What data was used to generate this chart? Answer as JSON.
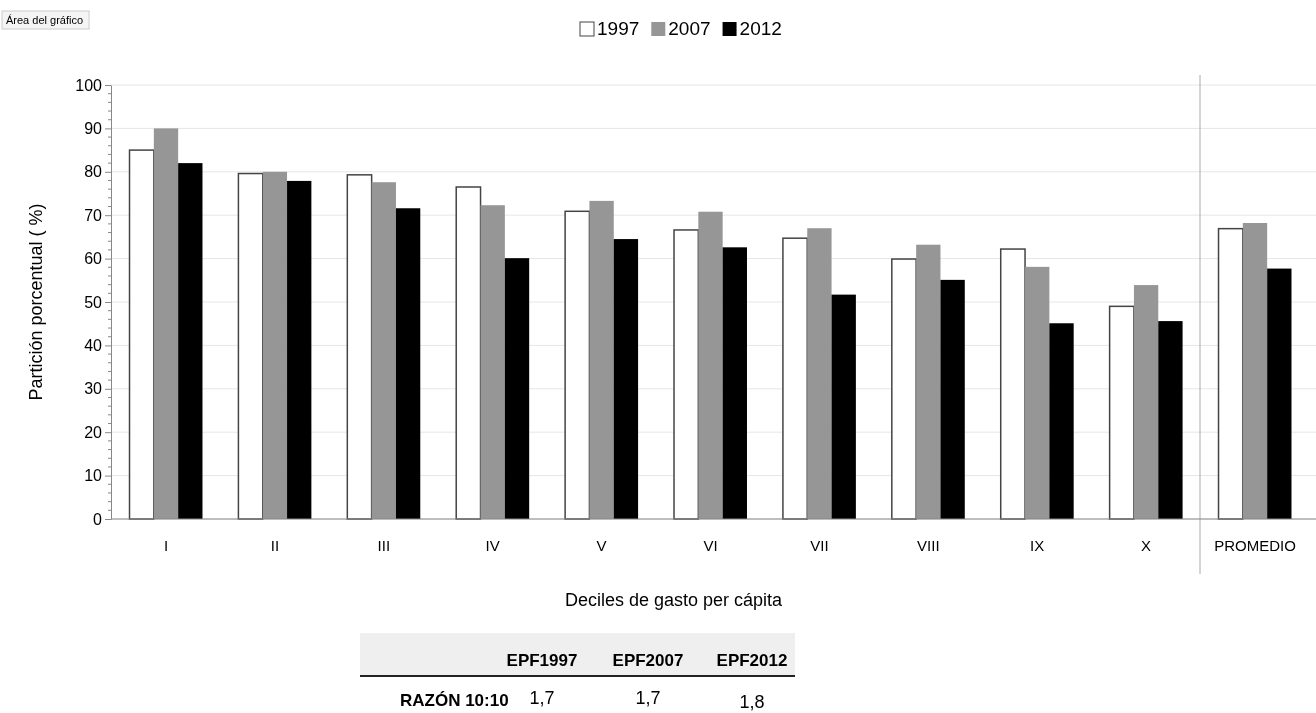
{
  "chart_data": {
    "type": "bar",
    "xlabel": "Deciles de gasto per cápita",
    "ylabel": "Partición porcentual ( %)",
    "categories": [
      "I",
      "II",
      "III",
      "IV",
      "V",
      "VI",
      "VII",
      "VIII",
      "IX",
      "X",
      "PROMEDIO"
    ],
    "series": [
      {
        "name": "1997",
        "color": "#ffffff",
        "values": [
          85,
          79.6,
          79.3,
          76.5,
          70.9,
          66.6,
          64.7,
          59.9,
          62.2,
          49,
          66.9
        ]
      },
      {
        "name": "2007",
        "color": "#969696",
        "values": [
          90,
          80,
          77.6,
          72.3,
          73.3,
          70.8,
          67,
          63.2,
          58.1,
          53.9,
          68.2
        ]
      },
      {
        "name": "2012",
        "color": "#000000",
        "values": [
          82,
          77.9,
          71.6,
          60.1,
          64.5,
          62.6,
          51.7,
          55.1,
          45.1,
          45.6,
          57.7
        ]
      }
    ],
    "ylim": [
      0,
      100
    ],
    "yticks": [
      0,
      10,
      20,
      30,
      40,
      50,
      60,
      70,
      80,
      90,
      100
    ],
    "grid": "y",
    "legend": "top",
    "ref_lines": [
      {
        "axis": "x",
        "value": "PROMEDIO",
        "color": "#aaaaaa"
      }
    ],
    "annotations": [
      "Área del gráfico",
      "EPF1997",
      "EPF2007",
      "EPF2012",
      "RAZÓN 10:10",
      "1,7",
      "1,7",
      "1,8"
    ]
  }
}
